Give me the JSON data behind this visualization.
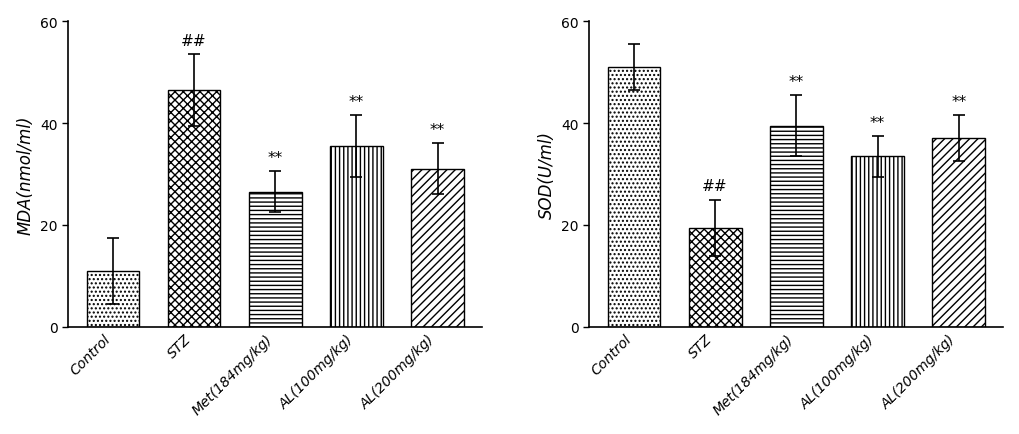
{
  "mda": {
    "categories": [
      "Control",
      "STZ",
      "Met(184mg/kg)",
      "AL(100mg/kg)",
      "AL(200mg/kg)"
    ],
    "values": [
      11,
      46.5,
      26.5,
      35.5,
      31.0
    ],
    "errors": [
      6.5,
      7.0,
      4.0,
      6.0,
      5.0
    ],
    "ylabel": "MDA(nmol/ml)",
    "ylim": [
      0,
      60
    ],
    "yticks": [
      0,
      20,
      40,
      60
    ],
    "annotations": [
      "",
      "##",
      "**",
      "**",
      "**"
    ],
    "hash_indices": [
      1
    ],
    "star_indices": [
      2,
      3,
      4
    ]
  },
  "sod": {
    "categories": [
      "Control",
      "STZ",
      "Met(184mg/kg)",
      "AL(100mg/kg)",
      "AL(200mg/kg)"
    ],
    "values": [
      51.0,
      19.5,
      39.5,
      33.5,
      37.0
    ],
    "errors": [
      4.5,
      5.5,
      6.0,
      4.0,
      4.5
    ],
    "ylabel": "SOD(U/ml)",
    "ylim": [
      0,
      60
    ],
    "yticks": [
      0,
      20,
      40,
      60
    ],
    "annotations": [
      "",
      "##",
      "**",
      "**",
      "**"
    ],
    "hash_indices": [
      1
    ],
    "star_indices": [
      2,
      3,
      4
    ]
  },
  "hatch_patterns": [
    "....",
    "xxxx",
    "----",
    "||||",
    "////"
  ],
  "bar_edge_color": "#000000",
  "bar_face_color": "white",
  "error_color": "black",
  "annotation_color": "#000000",
  "annotation_fontsize": 11,
  "axis_fontsize": 12,
  "tick_fontsize": 10,
  "bar_width": 0.65,
  "fig_width": 10.2,
  "fig_height": 4.35,
  "dpi": 100
}
